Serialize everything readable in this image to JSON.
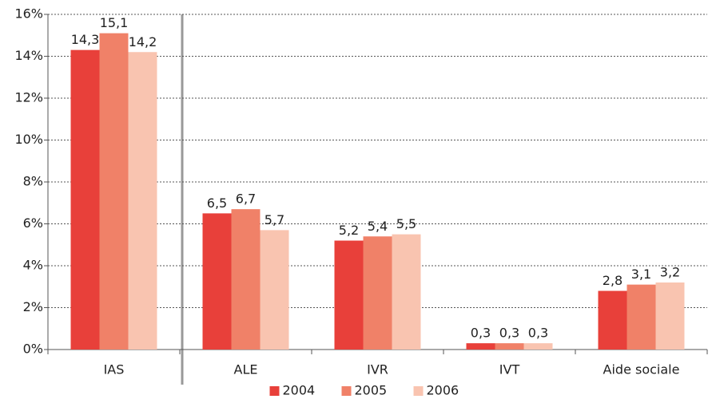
{
  "chart_data": {
    "type": "bar",
    "categories": [
      "IAS",
      "ALE",
      "IVR",
      "IVT",
      "Aide sociale"
    ],
    "series": [
      {
        "name": "2004",
        "color": "#e8403a",
        "values": [
          14.3,
          6.5,
          5.2,
          0.3,
          2.8
        ],
        "value_labels": [
          "14,3",
          "6,5",
          "5,2",
          "0,3",
          "2,8"
        ]
      },
      {
        "name": "2005",
        "color": "#f08168",
        "values": [
          15.1,
          6.7,
          5.4,
          0.3,
          3.1
        ],
        "value_labels": [
          "15,1",
          "6,7",
          "5,4",
          "0,3",
          "3,1"
        ]
      },
      {
        "name": "2006",
        "color": "#f9c4b0",
        "values": [
          14.2,
          5.7,
          5.5,
          0.3,
          3.2
        ],
        "value_labels": [
          "14,2",
          "5,7",
          "5,5",
          "0,3",
          "3,2"
        ]
      }
    ],
    "ylim": [
      0,
      16
    ],
    "yticks": [
      {
        "value": 0,
        "label": "0%"
      },
      {
        "value": 2,
        "label": "2%"
      },
      {
        "value": 4,
        "label": "4%"
      },
      {
        "value": 6,
        "label": "6%"
      },
      {
        "value": 8,
        "label": "8%"
      },
      {
        "value": 10,
        "label": "10%"
      },
      {
        "value": 12,
        "label": "12%"
      },
      {
        "value": 14,
        "label": "14%"
      },
      {
        "value": 16,
        "label": "16%"
      }
    ],
    "grid": true,
    "legend": "bottom"
  }
}
